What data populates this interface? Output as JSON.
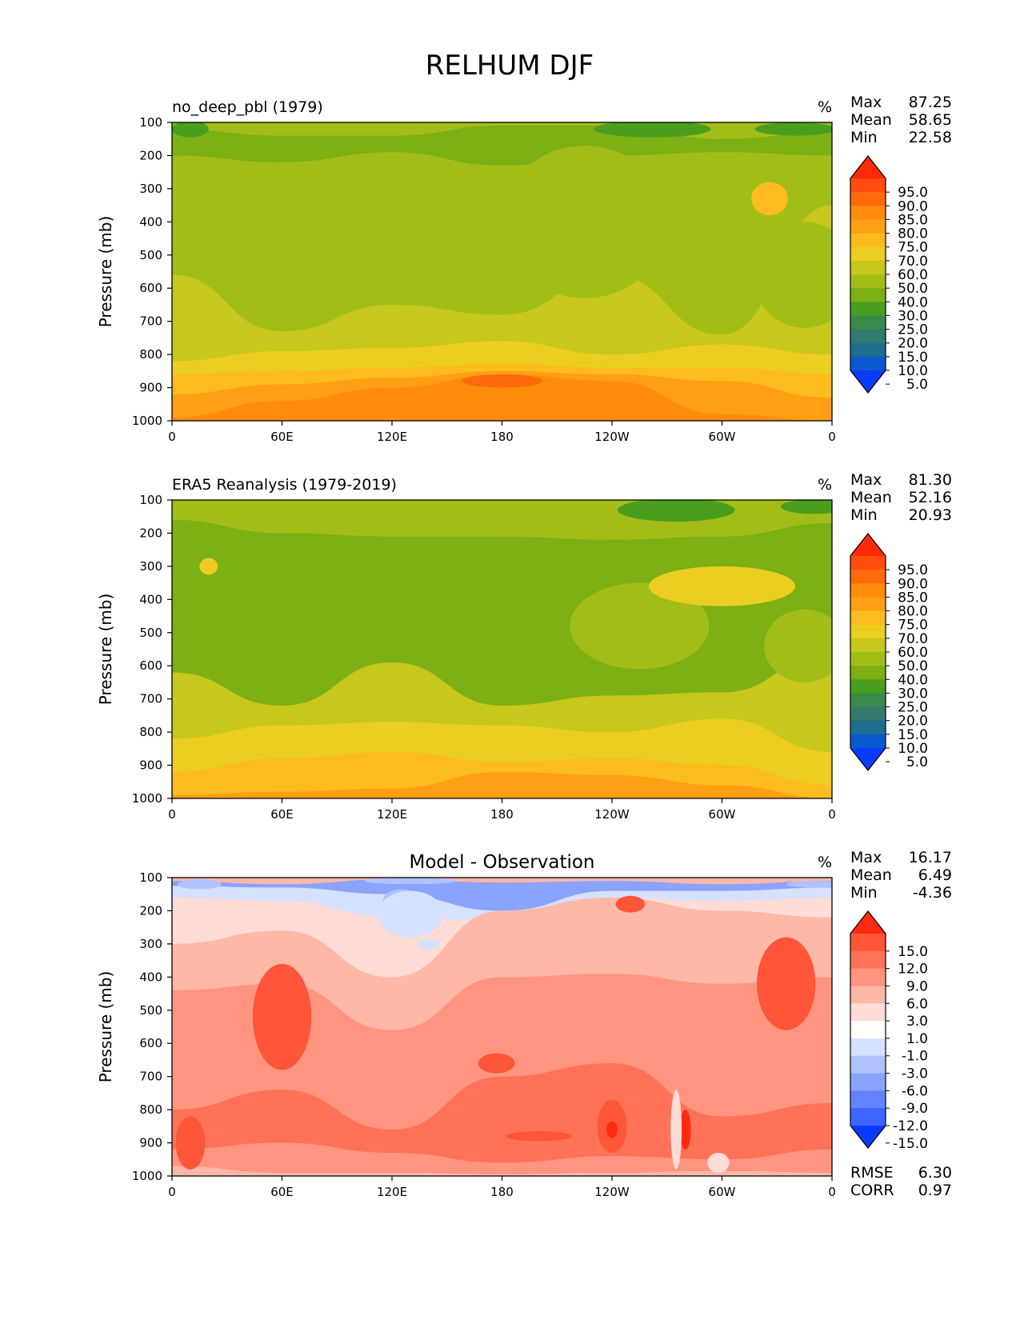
{
  "title": "RELHUM DJF",
  "x_ticks": [
    "0",
    "60E",
    "120E",
    "180",
    "120W",
    "60W",
    "0"
  ],
  "y_ticks": [
    "100",
    "200",
    "300",
    "400",
    "500",
    "600",
    "700",
    "800",
    "900",
    "1000"
  ],
  "stat_labels": {
    "max": "Max",
    "mean": "Mean",
    "min": "Min",
    "rmse": "RMSE",
    "corr": "CORR"
  },
  "chart_data": [
    {
      "type": "contour",
      "title": "no_deep_pbl (1979)",
      "units": "%",
      "ylabel": "Pressure (mb)",
      "xlabel": "",
      "xlim": [
        0,
        360
      ],
      "ylim": [
        1000,
        100
      ],
      "stats": {
        "max": "87.25",
        "mean": "58.65",
        "min": "22.58"
      },
      "colorbar": {
        "labels": [
          "95.0",
          "90.0",
          "85.0",
          "80.0",
          "75.0",
          "70.0",
          "60.0",
          "50.0",
          "40.0",
          "30.0",
          "25.0",
          "20.0",
          "15.0",
          "10.0",
          "5.0"
        ],
        "colors": [
          "#ff2b0a",
          "#ff4d0f",
          "#ff6a0a",
          "#ff8c0a",
          "#ff9f14",
          "#fcbb1e",
          "#ecce21",
          "#c8c71c",
          "#a3bd18",
          "#7cb014",
          "#4a9e1e",
          "#3a8a4a",
          "#33796e",
          "#1f6e90",
          "#0a5ad0",
          "#0a3cff"
        ]
      }
    },
    {
      "type": "contour",
      "title": "ERA5 Reanalysis (1979-2019)",
      "units": "%",
      "ylabel": "Pressure (mb)",
      "xlabel": "",
      "xlim": [
        0,
        360
      ],
      "ylim": [
        1000,
        100
      ],
      "stats": {
        "max": "81.30",
        "mean": "52.16",
        "min": "20.93"
      },
      "colorbar": {
        "labels": [
          "95.0",
          "90.0",
          "85.0",
          "80.0",
          "75.0",
          "70.0",
          "60.0",
          "50.0",
          "40.0",
          "30.0",
          "25.0",
          "20.0",
          "15.0",
          "10.0",
          "5.0"
        ],
        "colors": [
          "#ff2b0a",
          "#ff4d0f",
          "#ff6a0a",
          "#ff8c0a",
          "#ff9f14",
          "#fcbb1e",
          "#ecce21",
          "#c8c71c",
          "#a3bd18",
          "#7cb014",
          "#4a9e1e",
          "#3a8a4a",
          "#33796e",
          "#1f6e90",
          "#0a5ad0",
          "#0a3cff"
        ]
      }
    },
    {
      "type": "contour",
      "title": "Model - Observation",
      "units": "%",
      "ylabel": "Pressure (mb)",
      "xlabel": "",
      "xlim": [
        0,
        360
      ],
      "ylim": [
        1000,
        100
      ],
      "stats": {
        "max": "16.17",
        "mean": "6.49",
        "min": "-4.36",
        "rmse": "6.30",
        "corr": "0.97"
      },
      "colorbar": {
        "labels": [
          "15.0",
          "12.0",
          "9.0",
          "6.0",
          "3.0",
          "1.0",
          "-1.0",
          "-3.0",
          "-6.0",
          "-9.0",
          "-12.0",
          "-15.0"
        ],
        "colors": [
          "#ff2a12",
          "#ff5538",
          "#ff7258",
          "#ff9580",
          "#ffb8a8",
          "#ffdcd6",
          "#ffffff",
          "#d6e0ff",
          "#b0c2ff",
          "#8aa3ff",
          "#6484ff",
          "#3d64ff",
          "#0a3cff"
        ]
      }
    }
  ]
}
